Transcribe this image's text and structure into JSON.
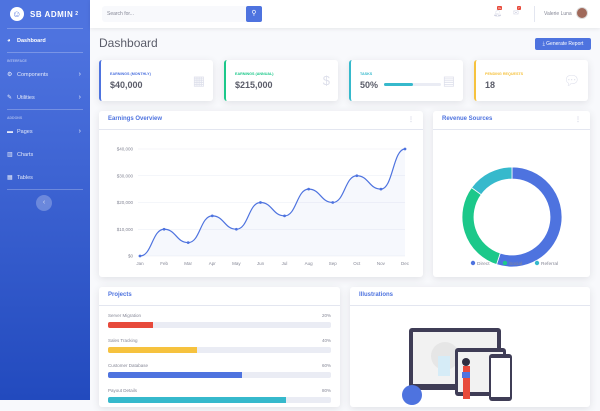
{
  "sidebar": {
    "brand": "SB ADMIN",
    "brand_sup": "2",
    "items": [
      {
        "label": "Dashboard",
        "icon": "tachometer-icon"
      },
      {
        "label": "Components",
        "icon": "cog-icon"
      },
      {
        "label": "Utilities",
        "icon": "wrench-icon"
      },
      {
        "label": "Pages",
        "icon": "folder-icon"
      },
      {
        "label": "Charts",
        "icon": "chart-icon"
      },
      {
        "label": "Tables",
        "icon": "table-icon"
      }
    ],
    "headings": [
      "Interface",
      "Addons"
    ]
  },
  "topbar": {
    "search_placeholder": "Search for...",
    "alerts_badge": "3+",
    "messages_badge": "7",
    "user": "Valerie Luna"
  },
  "page": {
    "title": "Dashboard",
    "generate": "Generate Report"
  },
  "stats": [
    {
      "label": "Earnings (Monthly)",
      "value": "$40,000",
      "color": "#4e73df"
    },
    {
      "label": "Earnings (Annual)",
      "value": "$215,000",
      "color": "#1cc88a"
    },
    {
      "label": "Tasks",
      "value": "50%",
      "progress": 50,
      "color": "#36b9cc"
    },
    {
      "label": "Pending Requests",
      "value": "18",
      "color": "#f6c23e"
    }
  ],
  "earnings": {
    "title": "Earnings Overview"
  },
  "revenue": {
    "title": "Revenue Sources"
  },
  "projects": {
    "title": "Projects",
    "items": [
      {
        "name": "Server Migration",
        "pct": "20%",
        "value": 20,
        "color": "#e74a3b"
      },
      {
        "name": "Sales Tracking",
        "pct": "40%",
        "value": 40,
        "color": "#f6c23e"
      },
      {
        "name": "Customer Database",
        "pct": "60%",
        "value": 60,
        "color": "#4e73df"
      },
      {
        "name": "Payout Details",
        "pct": "80%",
        "value": 80,
        "color": "#36b9cc"
      }
    ]
  },
  "illustrations": {
    "title": "Illustrations"
  },
  "chart_data": [
    {
      "type": "line",
      "categories": [
        "Jan",
        "Feb",
        "Mar",
        "Apr",
        "May",
        "Jun",
        "Jul",
        "Aug",
        "Sep",
        "Oct",
        "Nov",
        "Dec"
      ],
      "values": [
        0,
        10000,
        5000,
        15000,
        10000,
        20000,
        15000,
        25000,
        20000,
        30000,
        25000,
        40000
      ],
      "ylim": [
        0,
        40000
      ],
      "yticks": [
        "$0",
        "$10,000",
        "$20,000",
        "$30,000",
        "$40,000"
      ],
      "color": "#4e73df",
      "grid": true
    },
    {
      "type": "pie",
      "categories": [
        "Direct",
        "Social",
        "Referral"
      ],
      "values": [
        55,
        30,
        15
      ],
      "colors": [
        "#4e73df",
        "#1cc88a",
        "#36b9cc"
      ],
      "legend": "bottom"
    }
  ]
}
